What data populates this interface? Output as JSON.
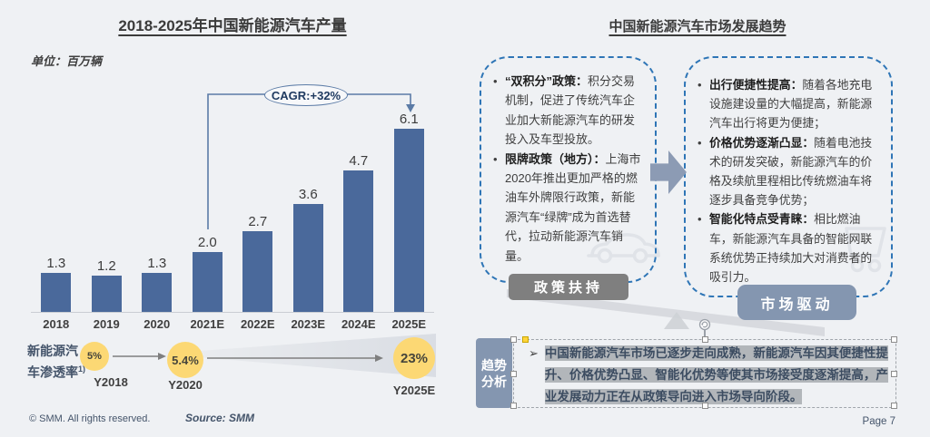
{
  "left_panel": {
    "title": "2018-2025年中国新能源汽车产量",
    "unit_label": "单位：百万辆",
    "cagr_badge": "CAGR:+32%",
    "penetration": {
      "label": "新能源汽车渗透率",
      "label_superscript": "1)",
      "points": [
        {
          "value": "5%",
          "year": "Y2018"
        },
        {
          "value": "5.4%",
          "year": "Y2020"
        },
        {
          "value": "23%",
          "year": "Y2025E"
        }
      ]
    },
    "footer": {
      "copyright": "© SMM. All rights reserved.",
      "source": "Source: SMM"
    }
  },
  "right_panel": {
    "title": "中国新能源汽车市场发展趋势",
    "policy_box": {
      "bullets": [
        {
          "lead": "“双积分”政策：",
          "text": "积分交易机制，促进了传统汽车企业加大新能源汽车的研发投入及车型投放。"
        },
        {
          "lead": "限牌政策（地方）：",
          "text": "上海市2020年推出更加严格的燃油车外牌限行政策，新能源汽车“绿牌”成为首选替代，拉动新能源汽车销量。"
        }
      ],
      "tag": "政策扶持"
    },
    "market_box": {
      "bullets": [
        {
          "lead": "出行便捷性提高：",
          "text": "随着各地充电设施建设量的大幅提高，新能源汽车出行将更为便捷；"
        },
        {
          "lead": "价格优势逐渐凸显：",
          "text": "随着电池技术的研发突破，新能源汽车的价格及续航里程相比传统燃油车将逐步具备竞争优势；"
        },
        {
          "lead": "智能化特点受青睐：",
          "text": "相比燃油车，新能源汽车具备的智能网联系统优势正持续加大对消费者的吸引力。"
        }
      ],
      "tag": "市场驱动"
    },
    "trend_analysis": {
      "tag": "趋势分析",
      "bullet_marker": "➢",
      "text": "中国新能源汽车市场已逐步走向成熟，新能源汽车因其便捷性提升、价格优势凸显、智能化优势等使其市场接受度逐渐提高，产业发展动力正在从政策导向进入市场导向阶段。"
    },
    "page_number": "Page 7"
  },
  "chart_data": [
    {
      "type": "bar",
      "title": "2018-2025年中国新能源汽车产量",
      "unit": "百万辆",
      "categories": [
        "2018",
        "2019",
        "2020",
        "2021E",
        "2022E",
        "2023E",
        "2024E",
        "2025E"
      ],
      "values": [
        1.3,
        1.2,
        1.3,
        2.0,
        2.7,
        3.6,
        4.7,
        6.1
      ],
      "value_labels": [
        "1.3",
        "1.2",
        "1.3",
        "2.0",
        "2.7",
        "3.6",
        "4.7",
        "6.1"
      ],
      "annotation": "CAGR:+32%",
      "bar_color": "#4a699b",
      "ylim": [
        0,
        6.8
      ],
      "grid": false,
      "legend": "none"
    },
    {
      "type": "line",
      "title": "新能源汽车渗透率",
      "categories": [
        "Y2018",
        "Y2020",
        "Y2025E"
      ],
      "values": [
        5,
        5.4,
        23
      ],
      "unit": "%",
      "marker_color": "#fcd874"
    }
  ]
}
